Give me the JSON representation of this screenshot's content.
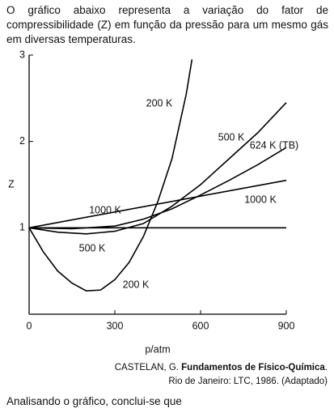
{
  "intro": "O gráfico abaixo representa a variação do fator de compressibilidade (Z) em função da pressão para um mesmo gás em diversas temperaturas.",
  "chart_data": {
    "type": "line",
    "x_label": "p/atm",
    "y_label": "Z",
    "color": "#000000",
    "xlim": [
      0,
      900
    ],
    "xticks": [
      0,
      300,
      600,
      900
    ],
    "ylim": [
      0,
      3
    ],
    "yticks": [
      1,
      2,
      3
    ],
    "series": [
      {
        "name": "200 K",
        "x": [
          0,
          50,
          100,
          150,
          200,
          250,
          300,
          350,
          400,
          450,
          500,
          550,
          570
        ],
        "values": [
          1,
          0.72,
          0.5,
          0.36,
          0.27,
          0.28,
          0.4,
          0.6,
          0.9,
          1.3,
          1.8,
          2.55,
          2.95
        ]
      },
      {
        "name": "500 K",
        "x": [
          0,
          100,
          200,
          300,
          400,
          500,
          600,
          700,
          800,
          900
        ],
        "values": [
          1,
          0.95,
          0.93,
          0.96,
          1.05,
          1.25,
          1.5,
          1.8,
          2.1,
          2.45
        ]
      },
      {
        "name": "624 K (TB)",
        "x": [
          0,
          150,
          300,
          400,
          500,
          600,
          700,
          800,
          900
        ],
        "values": [
          1,
          0.99,
          1.02,
          1.1,
          1.22,
          1.38,
          1.55,
          1.73,
          1.93
        ]
      },
      {
        "name": "1000 K",
        "x": [
          0,
          900
        ],
        "values": [
          1,
          1.55
        ]
      },
      {
        "x": [
          0,
          900
        ],
        "values": [
          1,
          1
        ]
      }
    ]
  },
  "source": {
    "author": "CASTELAN, G. ",
    "work": "Fundamentos de Físico-Química",
    "end": ".",
    "line2": "Rio de Janeiro: LTC, 1986. (Adaptado)"
  },
  "question": "Analisando o gráfico, conclui-se que"
}
